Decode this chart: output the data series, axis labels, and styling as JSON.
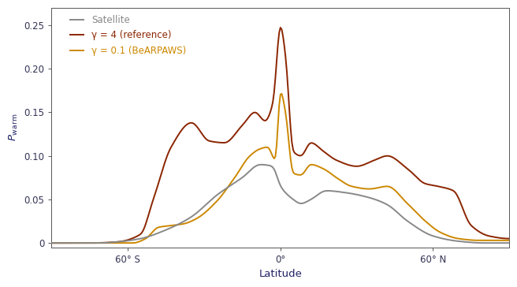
{
  "title": "",
  "xlabel": "Latitude",
  "ylabel": "$P_{\\mathrm{warm}}$",
  "xlim": [
    -90,
    90
  ],
  "ylim": [
    -0.005,
    0.27
  ],
  "xticks": [
    -60,
    0,
    60
  ],
  "xticklabels": [
    "60° S",
    "0°",
    "60° N"
  ],
  "yticks": [
    0.0,
    0.05,
    0.1,
    0.15,
    0.2,
    0.25
  ],
  "satellite_color": "#888888",
  "reference_color": "#8B2500",
  "edited_color": "#CC8800",
  "legend_labels": [
    "Satellite",
    "γ = 4 (reference)",
    "γ = 0.1 (BeARPAWS)"
  ],
  "background_color": "#ffffff",
  "line_width": 1.4,
  "tick_label_color": "#333355",
  "axis_label_color": "#222266"
}
